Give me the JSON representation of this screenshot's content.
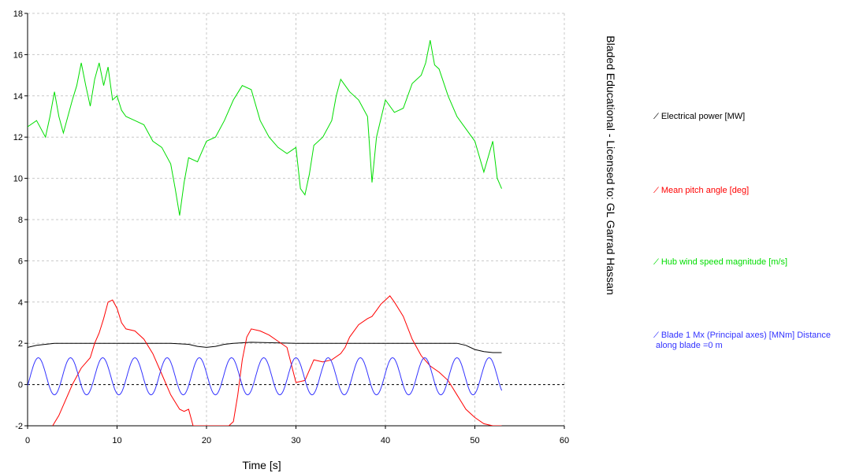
{
  "watermark": "Bladed Educational - Licensed to: GL Garrad Hassan",
  "legend": [
    {
      "label": "Electrical power  [MW]",
      "color": "#000000"
    },
    {
      "label": "Mean pitch angle  [deg]",
      "color": "#ff0000"
    },
    {
      "label": "Hub wind speed magnitude  [m/s]",
      "color": "#00dd00"
    },
    {
      "label": "Blade 1 Mx (Principal axes)  [MNm] Distance along blade =0 m",
      "color": "#3333ff"
    }
  ],
  "chart_data": {
    "type": "line",
    "xlabel": "Time [s]",
    "ylabel": "",
    "xlim": [
      0,
      60
    ],
    "ylim": [
      -2,
      18
    ],
    "xticks": [
      "0",
      "10",
      "20",
      "30",
      "40",
      "50",
      "60"
    ],
    "yticks": [
      "-2",
      "0",
      "2",
      "4",
      "6",
      "8",
      "10",
      "12",
      "14",
      "16",
      "18"
    ],
    "grid": true,
    "series": [
      {
        "name": "Electrical power  [MW]",
        "color": "#000000",
        "x": [
          0,
          1,
          2,
          3,
          4,
          5,
          8,
          12,
          16,
          18,
          19,
          20,
          21,
          22,
          23,
          25,
          30,
          35,
          40,
          45,
          48,
          49,
          50,
          51,
          52,
          53
        ],
        "y": [
          1.8,
          1.9,
          1.95,
          2.0,
          2.0,
          2.0,
          2.0,
          2.0,
          2.0,
          1.95,
          1.85,
          1.8,
          1.85,
          1.95,
          2.0,
          2.05,
          2.0,
          2.0,
          2.0,
          2.0,
          2.0,
          1.9,
          1.7,
          1.6,
          1.55,
          1.55
        ]
      },
      {
        "name": "Mean pitch angle  [deg]",
        "color": "#ff0000",
        "x": [
          2.8,
          3.5,
          4,
          5,
          6,
          7,
          7.5,
          8,
          8.5,
          9,
          9.5,
          10,
          10.5,
          11,
          12,
          13,
          14,
          15,
          16,
          17,
          17.5,
          18,
          18.5,
          20,
          22,
          22.5,
          23,
          23.5,
          24,
          24.5,
          25,
          26,
          27,
          28,
          29,
          30,
          31,
          32,
          33,
          34,
          35,
          35.5,
          36,
          37,
          38,
          38.5,
          39,
          39.5,
          40,
          40.5,
          41,
          42,
          43,
          44,
          45,
          46,
          47,
          48,
          49,
          50,
          51,
          52,
          53
        ],
        "y": [
          -2,
          -1.5,
          -1.0,
          0.0,
          0.8,
          1.3,
          2.0,
          2.5,
          3.2,
          4.0,
          4.1,
          3.7,
          3.0,
          2.7,
          2.6,
          2.2,
          1.5,
          0.5,
          -0.5,
          -1.2,
          -1.3,
          -1.2,
          -2,
          -2,
          -2,
          -2,
          -1.8,
          -0.5,
          1.2,
          2.3,
          2.7,
          2.6,
          2.4,
          2.1,
          1.8,
          0.1,
          0.2,
          1.2,
          1.1,
          1.2,
          1.5,
          1.8,
          2.3,
          2.9,
          3.2,
          3.3,
          3.6,
          3.9,
          4.1,
          4.3,
          4.0,
          3.3,
          2.2,
          1.4,
          0.9,
          0.6,
          0.2,
          -0.5,
          -1.2,
          -1.6,
          -1.9,
          -2,
          -2
        ]
      },
      {
        "name": "Hub wind speed magnitude  [m/s]",
        "color": "#00dd00",
        "x": [
          0,
          1,
          2,
          2.5,
          3,
          3.5,
          4,
          5,
          5.5,
          6,
          6.5,
          7,
          7.5,
          8,
          8.5,
          9,
          9.5,
          10,
          10.5,
          11,
          12,
          13,
          14,
          15,
          16,
          16.5,
          17,
          17.5,
          18,
          19,
          20,
          21,
          22,
          23,
          24,
          25,
          26,
          27,
          28,
          29,
          30,
          30.5,
          31,
          31.5,
          32,
          33,
          34,
          34.5,
          35,
          36,
          37,
          38,
          38.5,
          39,
          40,
          41,
          42,
          43,
          44,
          44.5,
          45,
          45.5,
          46,
          47,
          48,
          49,
          50,
          51,
          52,
          52.5,
          53
        ],
        "y": [
          12.5,
          12.8,
          12.0,
          13.0,
          14.2,
          13.0,
          12.2,
          13.8,
          14.5,
          15.6,
          14.5,
          13.5,
          14.8,
          15.6,
          14.5,
          15.4,
          13.8,
          14.0,
          13.3,
          13.0,
          12.8,
          12.6,
          11.8,
          11.5,
          10.7,
          9.5,
          8.2,
          9.8,
          11.0,
          10.8,
          11.8,
          12.0,
          12.8,
          13.8,
          14.5,
          14.3,
          12.8,
          12.0,
          11.5,
          11.2,
          11.5,
          9.5,
          9.2,
          10.2,
          11.6,
          12.0,
          12.8,
          14.0,
          14.8,
          14.2,
          13.8,
          13.0,
          9.8,
          12.0,
          13.8,
          13.2,
          13.4,
          14.6,
          15.0,
          15.6,
          16.7,
          15.5,
          15.3,
          14.0,
          13.0,
          12.4,
          11.8,
          10.3,
          11.8,
          10.0,
          9.5
        ]
      },
      {
        "name": "Blade 1 Mx (Principal axes)  [MNm] Distance along blade =0 m",
        "color": "#3333ff",
        "formula": "y = 0.4 + 0.9*sin(2*pi*(x-0.3)/3.6) for x in [0, 53]",
        "x_start": 0,
        "x_end": 53,
        "mean": 0.4,
        "amplitude": 0.9,
        "period": 3.6,
        "phase": 0.3
      }
    ]
  }
}
